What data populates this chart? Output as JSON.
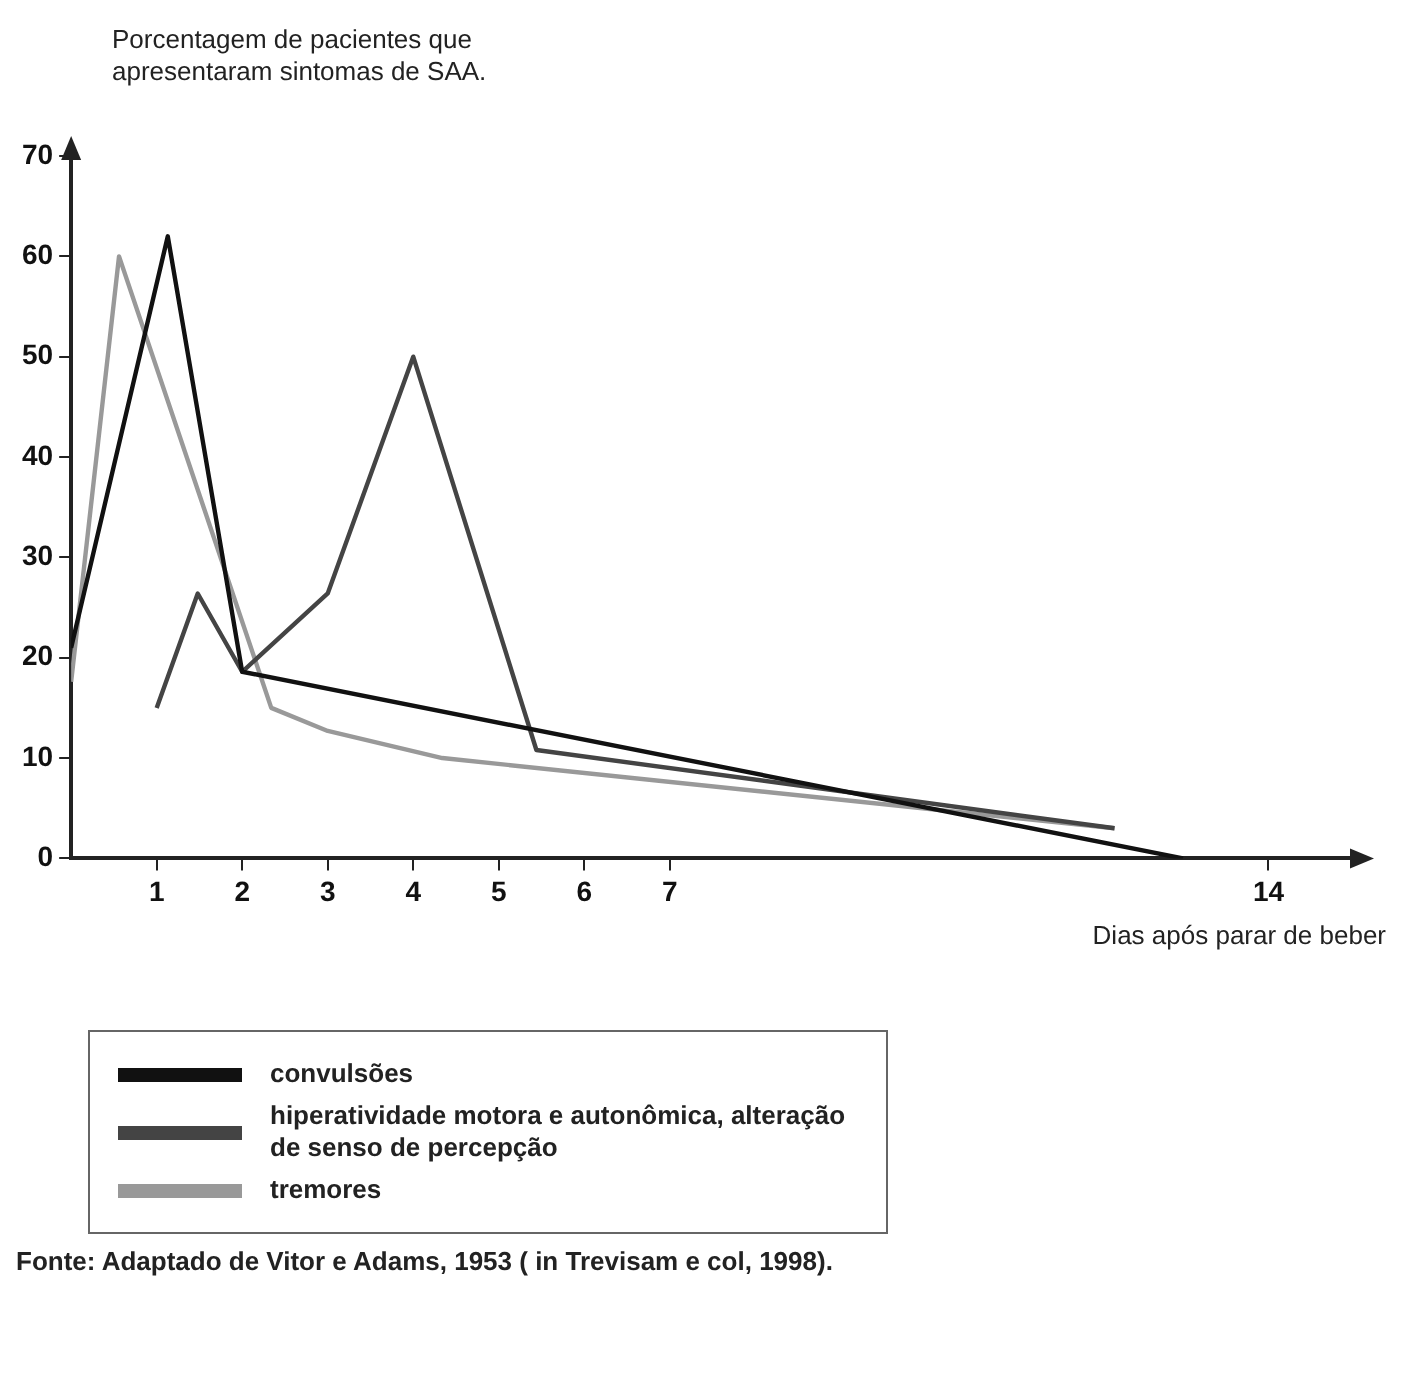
{
  "chart_data": {
    "type": "line",
    "ylabel": "Porcentagem de pacientes que apresentaram sintomas de SAA.",
    "xlabel": "Dias após parar de beber",
    "xlim": [
      0,
      15
    ],
    "xticks": [
      1,
      2,
      3,
      4,
      5,
      6,
      7,
      14
    ],
    "ylim": [
      0,
      70
    ],
    "yticks": [
      0,
      10,
      20,
      30,
      40,
      50,
      60,
      70
    ],
    "grid": false,
    "legend": "bottom left",
    "marker": "none",
    "line_style": "solid",
    "series": [
      {
        "name": "convulsões",
        "color": "#111111",
        "x": [
          0,
          1.13,
          2,
          13
        ],
        "values": [
          21,
          62,
          18.6,
          0
        ]
      },
      {
        "name": "hiperatividade motora e autonômica, alteração de senso de percepção",
        "color": "#444444",
        "x": [
          1,
          1.48,
          2,
          3,
          4,
          5.44,
          12.2
        ],
        "values": [
          15,
          26.4,
          18.6,
          26.4,
          50,
          10.8,
          3
        ]
      },
      {
        "name": "tremores",
        "color": "#999999",
        "x": [
          0,
          0.56,
          2.34,
          3,
          4.34,
          12.2
        ],
        "values": [
          17.6,
          60,
          15,
          12.7,
          10,
          3
        ]
      }
    ],
    "annotations": [
      "Fonte: Adaptado de Vitor e Adams, 1953 ( in Trevisam e col, 1998)."
    ]
  }
}
